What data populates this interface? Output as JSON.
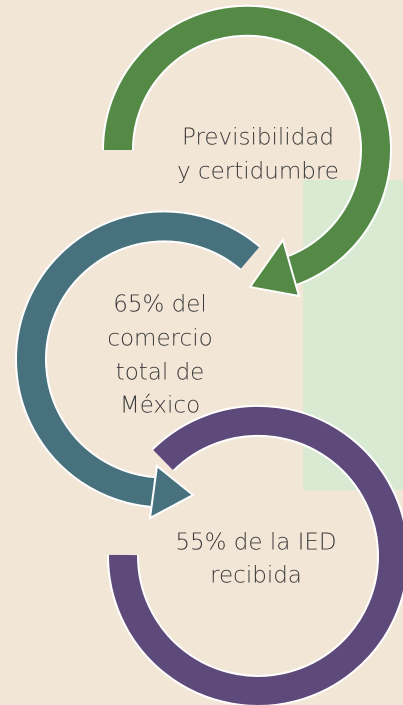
{
  "nodes": [
    {
      "label": [
        "Previsibilidad",
        "y certidumbre"
      ]
    },
    {
      "label": [
        "65% del",
        "comercio",
        "total de",
        "México"
      ]
    },
    {
      "label": [
        "55% de la IED",
        "recibida"
      ]
    }
  ]
}
